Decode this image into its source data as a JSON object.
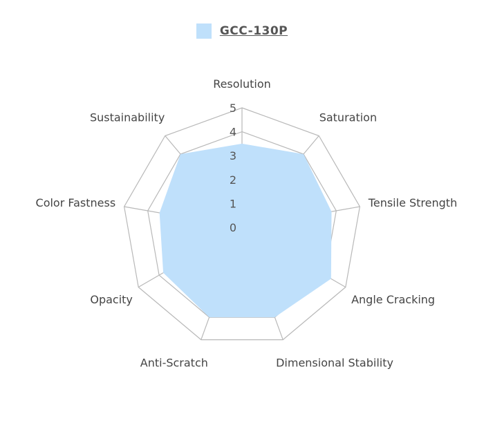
{
  "chart_data": {
    "type": "radar",
    "axes": [
      "Resolution",
      "Saturation",
      "Tensile Strength",
      "Angle Cracking",
      "Dimensional Stability",
      "Anti-Scratch",
      "Opacity",
      "Color Fastness",
      "Sustainability"
    ],
    "series": [
      {
        "name": "GCC-130P",
        "values": [
          3.5,
          4,
          3.8,
          4.3,
          4,
          4,
          3.8,
          3.5,
          4
        ],
        "color": "#bfe0fb"
      }
    ],
    "rlim": [
      0,
      5
    ],
    "ticks": [
      "0",
      "1",
      "2",
      "3",
      "4",
      "5"
    ],
    "legend_position": "top-center",
    "grid": true
  }
}
